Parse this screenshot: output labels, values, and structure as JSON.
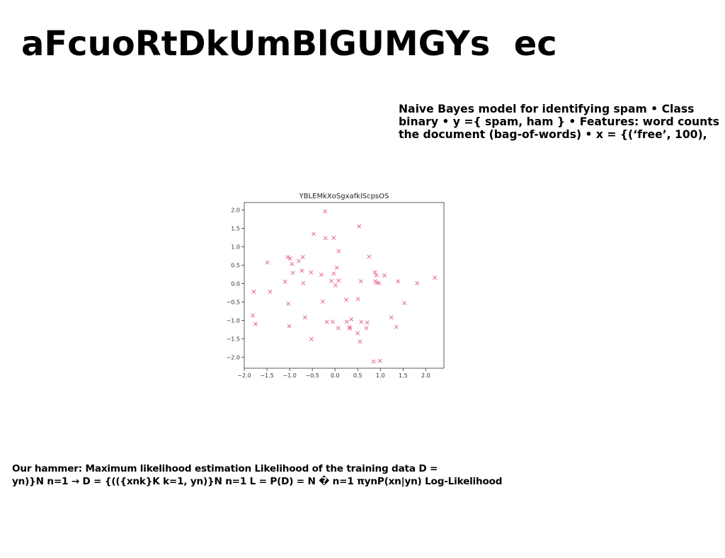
{
  "slide": {
    "title": "aFcuoRtDkUmBlGUMGYs  ec",
    "description_lines": [
      "Naive Bayes model for identifying spam • Class",
      "binary • y ={ spam, ham } • Features: word counts",
      "the document (bag-of-words) • x = {(‘free’, 100),"
    ],
    "footer_lines": [
      "Our hammer: Maximum likelihood estimation Likelihood of the training data D =",
      "yn)}N n=1 → D = {(({xnk}K k=1, yn)}N n=1 L = P(D) = N � n=1 πynP(xn|yn) Log-Likelihood"
    ]
  },
  "chart_data": {
    "type": "scatter",
    "title": "YBLEMkXoSgxafklScpsOS",
    "xlabel": "",
    "ylabel": "",
    "xlim": [
      -2.0,
      2.4
    ],
    "ylim": [
      -2.3,
      2.2
    ],
    "x_ticks": [
      "−2.0",
      "−1.5",
      "−1.0",
      "−0.5",
      "0.0",
      "0.5",
      "1.0",
      "1.5",
      "2.0"
    ],
    "y_ticks": [
      "2.0",
      "1.5",
      "1.0",
      "0.5",
      "0.0",
      "−0.5",
      "−1.0",
      "−1.5",
      "−2.0"
    ],
    "marker": "x",
    "color": "#e8608c",
    "grid": false,
    "points": [
      {
        "x": -0.22,
        "y": 1.96
      },
      {
        "x": 0.53,
        "y": 1.55
      },
      {
        "x": -0.47,
        "y": 1.35
      },
      {
        "x": -0.21,
        "y": 1.23
      },
      {
        "x": -0.03,
        "y": 1.24
      },
      {
        "x": 0.08,
        "y": 0.88
      },
      {
        "x": -1.04,
        "y": 0.72
      },
      {
        "x": -0.99,
        "y": 0.68
      },
      {
        "x": -0.71,
        "y": 0.72
      },
      {
        "x": 0.75,
        "y": 0.73
      },
      {
        "x": -0.8,
        "y": 0.61
      },
      {
        "x": -1.49,
        "y": 0.57
      },
      {
        "x": -0.95,
        "y": 0.53
      },
      {
        "x": 0.04,
        "y": 0.43
      },
      {
        "x": -0.73,
        "y": 0.35
      },
      {
        "x": -0.93,
        "y": 0.29
      },
      {
        "x": -0.53,
        "y": 0.3
      },
      {
        "x": -0.03,
        "y": 0.27
      },
      {
        "x": -0.3,
        "y": 0.24
      },
      {
        "x": 0.88,
        "y": 0.31
      },
      {
        "x": 0.91,
        "y": 0.22
      },
      {
        "x": 1.09,
        "y": 0.22
      },
      {
        "x": 2.2,
        "y": 0.16
      },
      {
        "x": -1.1,
        "y": 0.05
      },
      {
        "x": -0.7,
        "y": 0.01
      },
      {
        "x": -0.08,
        "y": 0.07
      },
      {
        "x": 0.08,
        "y": 0.08
      },
      {
        "x": 0.57,
        "y": 0.06
      },
      {
        "x": 0.89,
        "y": 0.06
      },
      {
        "x": 0.92,
        "y": 0.02
      },
      {
        "x": 0.97,
        "y": 0.01
      },
      {
        "x": 1.39,
        "y": 0.06
      },
      {
        "x": 1.81,
        "y": 0.01
      },
      {
        "x": 0.01,
        "y": -0.05
      },
      {
        "x": -1.79,
        "y": -0.22
      },
      {
        "x": -1.43,
        "y": -0.22
      },
      {
        "x": -0.27,
        "y": -0.49
      },
      {
        "x": 0.25,
        "y": -0.44
      },
      {
        "x": 0.51,
        "y": -0.42
      },
      {
        "x": 1.53,
        "y": -0.53
      },
      {
        "x": -1.03,
        "y": -0.55
      },
      {
        "x": -1.81,
        "y": -0.87
      },
      {
        "x": -0.66,
        "y": -0.92
      },
      {
        "x": 1.24,
        "y": -0.92
      },
      {
        "x": 0.36,
        "y": -0.97
      },
      {
        "x": -0.18,
        "y": -1.04
      },
      {
        "x": -0.05,
        "y": -1.04
      },
      {
        "x": 0.26,
        "y": -1.04
      },
      {
        "x": 0.58,
        "y": -1.04
      },
      {
        "x": 0.71,
        "y": -1.06
      },
      {
        "x": -1.75,
        "y": -1.1
      },
      {
        "x": -1.01,
        "y": -1.16
      },
      {
        "x": 0.07,
        "y": -1.21
      },
      {
        "x": 0.32,
        "y": -1.18
      },
      {
        "x": 0.33,
        "y": -1.22
      },
      {
        "x": 0.69,
        "y": -1.21
      },
      {
        "x": 1.35,
        "y": -1.18
      },
      {
        "x": 0.5,
        "y": -1.35
      },
      {
        "x": -0.52,
        "y": -1.51
      },
      {
        "x": 0.55,
        "y": -1.58
      },
      {
        "x": 0.85,
        "y": -2.12
      },
      {
        "x": 0.99,
        "y": -2.1
      }
    ]
  }
}
